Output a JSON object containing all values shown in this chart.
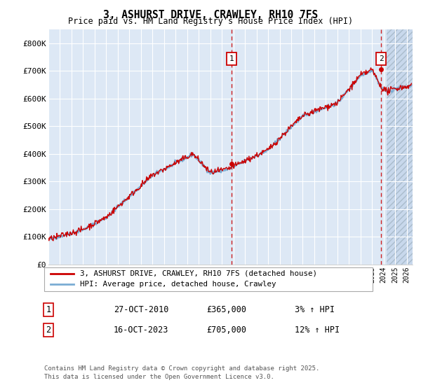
{
  "title": "3, ASHURST DRIVE, CRAWLEY, RH10 7FS",
  "subtitle": "Price paid vs. HM Land Registry's House Price Index (HPI)",
  "ylabel_ticks": [
    "£0",
    "£100K",
    "£200K",
    "£300K",
    "£400K",
    "£500K",
    "£600K",
    "£700K",
    "£800K"
  ],
  "ytick_values": [
    0,
    100000,
    200000,
    300000,
    400000,
    500000,
    600000,
    700000,
    800000
  ],
  "ylim": [
    0,
    850000
  ],
  "xlim_start": 1995.0,
  "xlim_end": 2026.5,
  "hatch_start": 2024.25,
  "transaction1": {
    "date_num": 2010.82,
    "price": 365000,
    "label": "1",
    "pct": "3%",
    "date_str": "27-OCT-2010"
  },
  "transaction2": {
    "date_num": 2023.79,
    "price": 705000,
    "label": "2",
    "pct": "12%",
    "date_str": "16-OCT-2023"
  },
  "legend_line1": "3, ASHURST DRIVE, CRAWLEY, RH10 7FS (detached house)",
  "legend_line2": "HPI: Average price, detached house, Crawley",
  "footnote1": "Contains HM Land Registry data © Crown copyright and database right 2025.",
  "footnote2": "This data is licensed under the Open Government Licence v3.0.",
  "line_color_red": "#cc0000",
  "line_color_blue": "#7aadd4",
  "bg_plot": "#dde8f5",
  "bg_hatch": "#c8d8ec",
  "grid_color": "#ffffff",
  "dashed_line_color": "#cc0000",
  "box_color_border": "#cc0000"
}
